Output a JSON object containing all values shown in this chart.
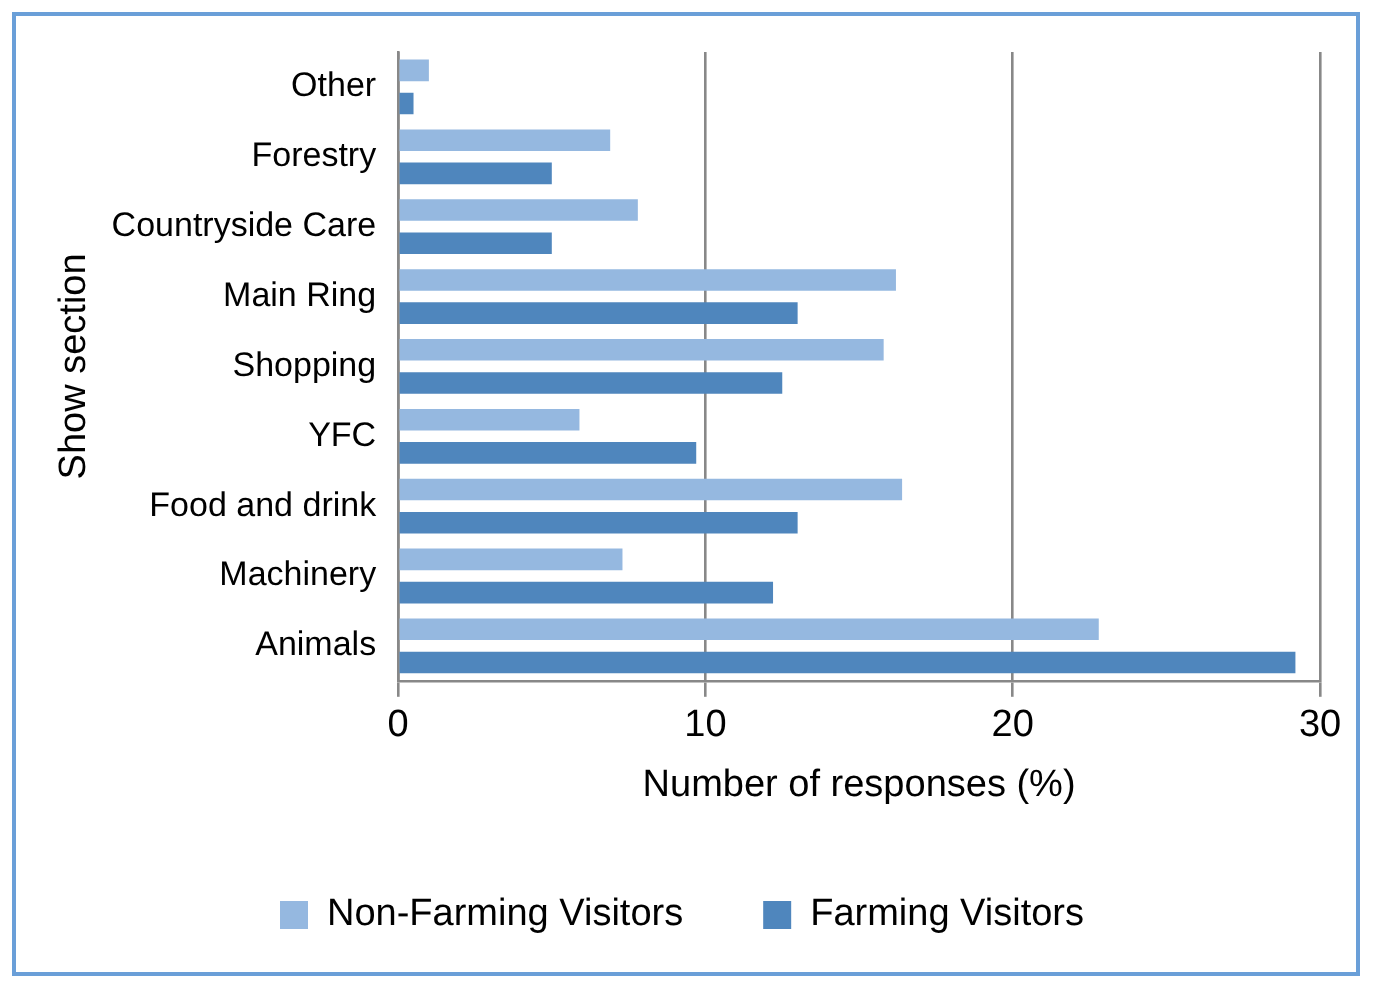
{
  "chart_data": {
    "type": "bar",
    "orientation": "horizontal",
    "ylabel": "Show section",
    "xlabel": "Number of responses (%)",
    "categories": [
      "Other",
      "Forestry",
      "Countryside Care",
      "Main Ring",
      "Shopping",
      "YFC",
      "Food and drink",
      "Machinery",
      "Animals"
    ],
    "series": [
      {
        "name": "Non-Farming Visitors",
        "color": "#95b8e0",
        "values": [
          1.0,
          6.9,
          7.8,
          16.2,
          15.8,
          5.9,
          16.4,
          7.3,
          22.8
        ]
      },
      {
        "name": "Farming Visitors",
        "color": "#4f86bd",
        "values": [
          0.5,
          5.0,
          5.0,
          13.0,
          12.5,
          9.7,
          13.0,
          12.2,
          29.2
        ]
      }
    ],
    "xlim": [
      0,
      30
    ],
    "xticks": [
      0,
      10,
      20,
      30
    ],
    "grid": "x",
    "legend": "bottom"
  }
}
